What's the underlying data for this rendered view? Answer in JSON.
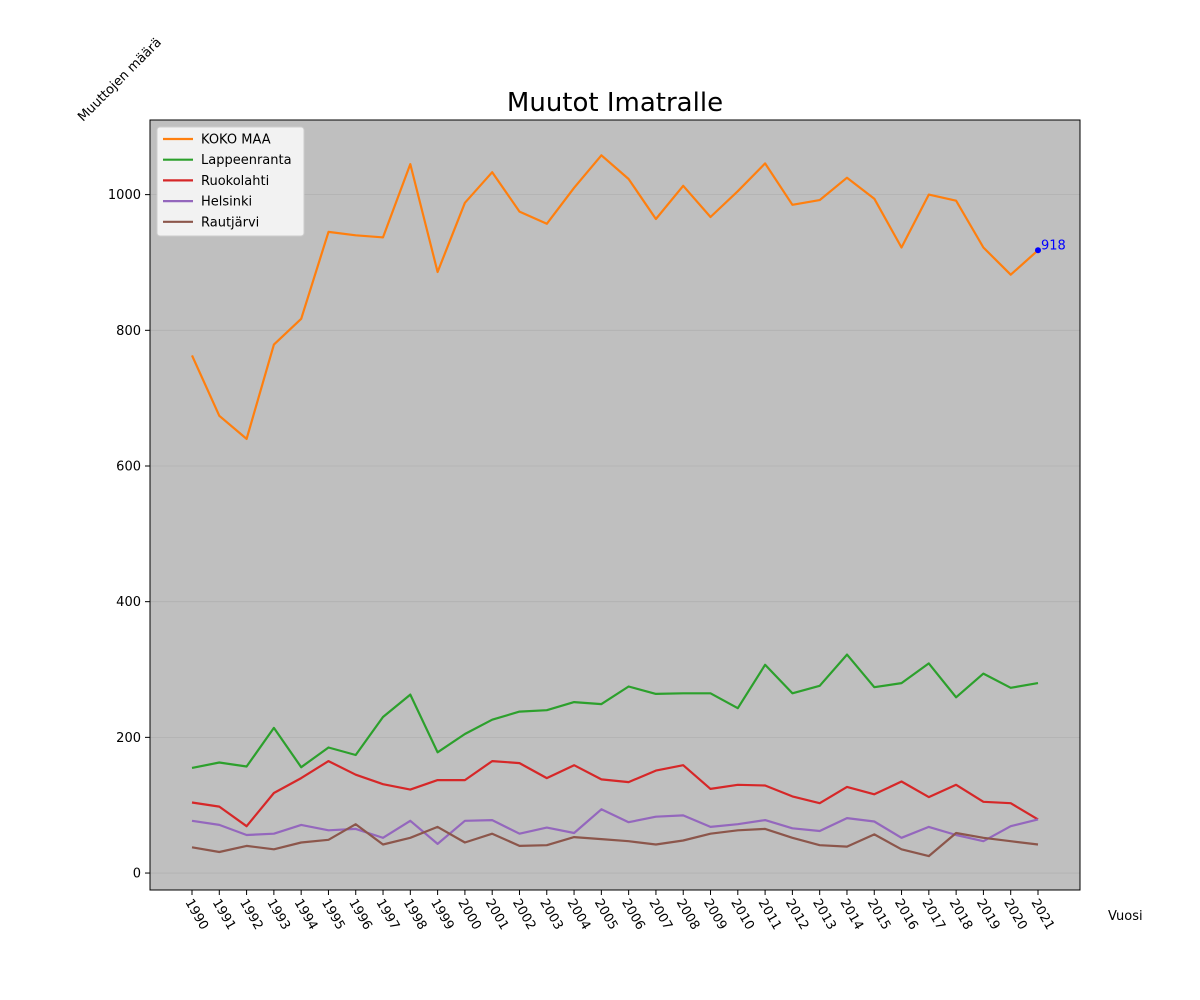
{
  "chart_data": {
    "type": "line",
    "title": "Muutot Imatralle",
    "xlabel": "Vuosi",
    "ylabel": "Muuttojen määrä",
    "x": [
      1990,
      1991,
      1992,
      1993,
      1994,
      1995,
      1996,
      1997,
      1998,
      1999,
      2000,
      2001,
      2002,
      2003,
      2004,
      2005,
      2006,
      2007,
      2008,
      2009,
      2010,
      2011,
      2012,
      2013,
      2014,
      2015,
      2016,
      2017,
      2018,
      2019,
      2020,
      2021
    ],
    "ylim": [
      -25,
      1110
    ],
    "yticks": [
      0,
      200,
      400,
      600,
      800,
      1000
    ],
    "grid": true,
    "legend_position": "top-left",
    "plot_background": "#bfbfbf",
    "series": [
      {
        "name": "KOKO MAA",
        "color": "#ff7f0e",
        "values": [
          763,
          674,
          640,
          779,
          817,
          945,
          940,
          937,
          1045,
          886,
          988,
          1033,
          975,
          957,
          1010,
          1058,
          1023,
          964,
          1013,
          967,
          1005,
          1046,
          985,
          992,
          1025,
          994,
          922,
          1000,
          991,
          922,
          882,
          918
        ]
      },
      {
        "name": "Lappeenranta",
        "color": "#2ca02c",
        "values": [
          155,
          163,
          157,
          214,
          156,
          185,
          174,
          230,
          263,
          178,
          205,
          226,
          238,
          240,
          252,
          249,
          275,
          264,
          265,
          265,
          243,
          307,
          265,
          276,
          322,
          274,
          280,
          309,
          259,
          294,
          273,
          280
        ]
      },
      {
        "name": "Ruokolahti",
        "color": "#d62728",
        "values": [
          104,
          98,
          69,
          118,
          140,
          165,
          145,
          131,
          123,
          137,
          137,
          165,
          162,
          140,
          159,
          138,
          134,
          151,
          159,
          124,
          130,
          129,
          113,
          103,
          127,
          116,
          135,
          112,
          130,
          105,
          103,
          79
        ]
      },
      {
        "name": "Helsinki",
        "color": "#9467bd",
        "values": [
          77,
          71,
          56,
          58,
          71,
          63,
          65,
          52,
          77,
          43,
          77,
          78,
          58,
          67,
          59,
          94,
          75,
          83,
          85,
          68,
          72,
          78,
          66,
          62,
          81,
          76,
          52,
          68,
          56,
          47,
          69,
          79
        ]
      },
      {
        "name": "Rautjärvi",
        "color": "#8c564b",
        "values": [
          38,
          31,
          40,
          35,
          45,
          49,
          72,
          42,
          52,
          68,
          45,
          58,
          40,
          41,
          53,
          50,
          47,
          42,
          48,
          58,
          63,
          65,
          52,
          41,
          39,
          57,
          35,
          25,
          59,
          52,
          47,
          42
        ]
      }
    ],
    "annotations": [
      {
        "x": 2021,
        "y": 918,
        "text": "918",
        "color": "#0000ff"
      }
    ]
  }
}
